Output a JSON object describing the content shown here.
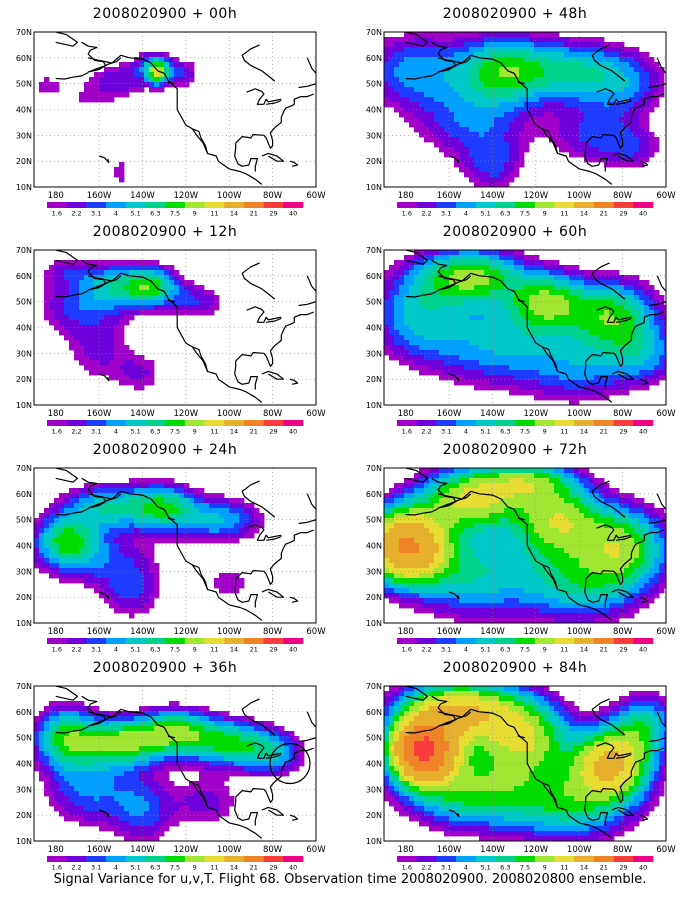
{
  "figure": {
    "caption": "Signal Variance for u,v,T. Flight 68. Observation time 2008020900. 2008020800 ensemble."
  },
  "axes": {
    "x_ticks": [
      "180",
      "160W",
      "140W",
      "120W",
      "100W",
      "80W",
      "60W"
    ],
    "x_values": [
      -180,
      -160,
      -140,
      -120,
      -100,
      -80,
      -60
    ],
    "y_ticks": [
      "10N",
      "20N",
      "30N",
      "40N",
      "50N",
      "60N",
      "70N"
    ],
    "y_values": [
      10,
      20,
      30,
      40,
      50,
      60,
      70
    ],
    "xlim": [
      -190,
      -60
    ],
    "ylim": [
      10,
      70
    ],
    "grid": "dotted"
  },
  "colorbar": {
    "labels": [
      "1.6",
      "2.2",
      "3.1",
      "4",
      "5.1",
      "6.3",
      "7.5",
      "9",
      "11",
      "14",
      "21",
      "29",
      "40"
    ],
    "colors": [
      "#a000c8",
      "#6e00dc",
      "#1e3cff",
      "#00a0ff",
      "#00c8c8",
      "#00d28c",
      "#00dc00",
      "#a0e632",
      "#e6dc32",
      "#e6af2d",
      "#f08228",
      "#fa3c3c",
      "#f00082"
    ]
  },
  "chart_data": [
    {
      "type": "heatmap",
      "title": "2008020900 + 00h",
      "lead": "00h",
      "blobs": [
        {
          "lon": -168,
          "lat": 44,
          "sx": 16,
          "sy": 6,
          "amp": 1.5
        },
        {
          "lon": -150,
          "lat": 52,
          "sx": 10,
          "sy": 5,
          "amp": 2.5
        },
        {
          "lon": -135,
          "lat": 57,
          "sx": 6,
          "sy": 4,
          "amp": 4
        },
        {
          "lon": -133,
          "lat": 54,
          "sx": 3,
          "sy": 3,
          "amp": 8
        },
        {
          "lon": -122,
          "lat": 54,
          "sx": 6,
          "sy": 4,
          "amp": 3
        },
        {
          "lon": -150,
          "lat": 16,
          "sx": 4,
          "sy": 5,
          "amp": 2
        },
        {
          "lon": -185,
          "lat": 50,
          "sx": 6,
          "sy": 3,
          "amp": 1.4
        }
      ]
    },
    {
      "type": "heatmap",
      "title": "2008020900 + 48h",
      "lead": "48h",
      "blobs": [
        {
          "lon": -175,
          "lat": 55,
          "sx": 18,
          "sy": 10,
          "amp": 4.5
        },
        {
          "lon": -135,
          "lat": 55,
          "sx": 14,
          "sy": 9,
          "amp": 7.5
        },
        {
          "lon": -105,
          "lat": 55,
          "sx": 16,
          "sy": 8,
          "amp": 5.5
        },
        {
          "lon": -80,
          "lat": 50,
          "sx": 14,
          "sy": 9,
          "amp": 4
        },
        {
          "lon": -150,
          "lat": 35,
          "sx": 18,
          "sy": 10,
          "amp": 3.5
        },
        {
          "lon": -140,
          "lat": 18,
          "sx": 10,
          "sy": 8,
          "amp": 3
        },
        {
          "lon": -95,
          "lat": 30,
          "sx": 14,
          "sy": 8,
          "amp": 3
        },
        {
          "lon": -75,
          "lat": 25,
          "sx": 10,
          "sy": 6,
          "amp": 2.5
        }
      ]
    },
    {
      "type": "heatmap",
      "title": "2008020900 + 12h",
      "lead": "12h",
      "blobs": [
        {
          "lon": -170,
          "lat": 48,
          "sx": 14,
          "sy": 8,
          "amp": 3
        },
        {
          "lon": -150,
          "lat": 56,
          "sx": 12,
          "sy": 6,
          "amp": 5.5
        },
        {
          "lon": -135,
          "lat": 56,
          "sx": 8,
          "sy": 5,
          "amp": 6
        },
        {
          "lon": -115,
          "lat": 50,
          "sx": 10,
          "sy": 5,
          "amp": 3
        },
        {
          "lon": -160,
          "lat": 30,
          "sx": 12,
          "sy": 10,
          "amp": 2.2
        },
        {
          "lon": -140,
          "lat": 22,
          "sx": 8,
          "sy": 6,
          "amp": 2
        },
        {
          "lon": -175,
          "lat": 62,
          "sx": 10,
          "sy": 4,
          "amp": 2
        }
      ]
    },
    {
      "type": "heatmap",
      "title": "2008020900 + 60h",
      "lead": "60h",
      "blobs": [
        {
          "lon": -150,
          "lat": 60,
          "sx": 16,
          "sy": 7,
          "amp": 9
        },
        {
          "lon": -115,
          "lat": 50,
          "sx": 12,
          "sy": 8,
          "amp": 8
        },
        {
          "lon": -85,
          "lat": 45,
          "sx": 14,
          "sy": 9,
          "amp": 8
        },
        {
          "lon": -175,
          "lat": 45,
          "sx": 14,
          "sy": 12,
          "amp": 5
        },
        {
          "lon": -140,
          "lat": 35,
          "sx": 20,
          "sy": 12,
          "amp": 5
        },
        {
          "lon": -100,
          "lat": 25,
          "sx": 18,
          "sy": 10,
          "amp": 4
        },
        {
          "lon": -70,
          "lat": 30,
          "sx": 12,
          "sy": 8,
          "amp": 4
        }
      ]
    },
    {
      "type": "heatmap",
      "title": "2008020900 + 24h",
      "lead": "24h",
      "blobs": [
        {
          "lon": -175,
          "lat": 42,
          "sx": 10,
          "sy": 7,
          "amp": 7
        },
        {
          "lon": -155,
          "lat": 55,
          "sx": 14,
          "sy": 6,
          "amp": 6
        },
        {
          "lon": -130,
          "lat": 55,
          "sx": 10,
          "sy": 6,
          "amp": 6.5
        },
        {
          "lon": -105,
          "lat": 50,
          "sx": 14,
          "sy": 6,
          "amp": 5
        },
        {
          "lon": -160,
          "lat": 35,
          "sx": 18,
          "sy": 8,
          "amp": 3
        },
        {
          "lon": -145,
          "lat": 22,
          "sx": 10,
          "sy": 8,
          "amp": 3
        },
        {
          "lon": -100,
          "lat": 25,
          "sx": 10,
          "sy": 6,
          "amp": 2
        }
      ]
    },
    {
      "type": "heatmap",
      "title": "2008020900 + 72h",
      "lead": "72h",
      "blobs": [
        {
          "lon": -180,
          "lat": 40,
          "sx": 12,
          "sy": 9,
          "amp": 21
        },
        {
          "lon": -150,
          "lat": 58,
          "sx": 16,
          "sy": 8,
          "amp": 11
        },
        {
          "lon": -110,
          "lat": 50,
          "sx": 14,
          "sy": 10,
          "amp": 10
        },
        {
          "lon": -80,
          "lat": 40,
          "sx": 14,
          "sy": 10,
          "amp": 9
        },
        {
          "lon": -150,
          "lat": 30,
          "sx": 20,
          "sy": 12,
          "amp": 6
        },
        {
          "lon": -100,
          "lat": 25,
          "sx": 20,
          "sy": 10,
          "amp": 6
        },
        {
          "lon": -125,
          "lat": 65,
          "sx": 14,
          "sy": 5,
          "amp": 7
        }
      ]
    },
    {
      "type": "heatmap",
      "title": "2008020900 + 36h",
      "lead": "36h",
      "blobs": [
        {
          "lon": -175,
          "lat": 50,
          "sx": 10,
          "sy": 8,
          "amp": 8
        },
        {
          "lon": -150,
          "lat": 48,
          "sx": 12,
          "sy": 6,
          "amp": 9
        },
        {
          "lon": -125,
          "lat": 52,
          "sx": 12,
          "sy": 6,
          "amp": 9
        },
        {
          "lon": -100,
          "lat": 48,
          "sx": 12,
          "sy": 6,
          "amp": 7
        },
        {
          "lon": -80,
          "lat": 44,
          "sx": 10,
          "sy": 6,
          "amp": 5
        },
        {
          "lon": -165,
          "lat": 30,
          "sx": 14,
          "sy": 10,
          "amp": 4
        },
        {
          "lon": -140,
          "lat": 22,
          "sx": 10,
          "sy": 10,
          "amp": 3.5
        },
        {
          "lon": -110,
          "lat": 25,
          "sx": 12,
          "sy": 8,
          "amp": 2.5
        }
      ]
    },
    {
      "type": "heatmap",
      "title": "2008020900 + 84h",
      "lead": "84h",
      "blobs": [
        {
          "lon": -172,
          "lat": 45,
          "sx": 10,
          "sy": 8,
          "amp": 29
        },
        {
          "lon": -155,
          "lat": 60,
          "sx": 18,
          "sy": 8,
          "amp": 14
        },
        {
          "lon": -125,
          "lat": 50,
          "sx": 14,
          "sy": 10,
          "amp": 10
        },
        {
          "lon": -85,
          "lat": 40,
          "sx": 12,
          "sy": 9,
          "amp": 14
        },
        {
          "lon": -150,
          "lat": 30,
          "sx": 20,
          "sy": 10,
          "amp": 8
        },
        {
          "lon": -105,
          "lat": 25,
          "sx": 20,
          "sy": 10,
          "amp": 7
        },
        {
          "lon": -70,
          "lat": 55,
          "sx": 10,
          "sy": 8,
          "amp": 6
        }
      ]
    }
  ]
}
